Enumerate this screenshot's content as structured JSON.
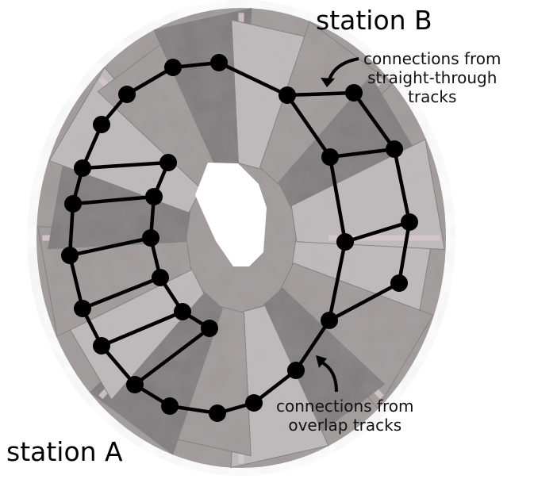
{
  "labels": {
    "station_b": "station B",
    "station_a": "station A",
    "straight_through": [
      "connections from",
      "straight-through",
      "tracks"
    ],
    "overlap": [
      "connections from",
      "overlap tracks"
    ]
  },
  "colors": {
    "chamber_light": "#bdb8b9",
    "chamber_mid": "#9e9899",
    "chamber_dark": "#7f7a7b",
    "chamber_edge": "#d9c9cc",
    "node": "#000000",
    "link": "#000000"
  }
}
